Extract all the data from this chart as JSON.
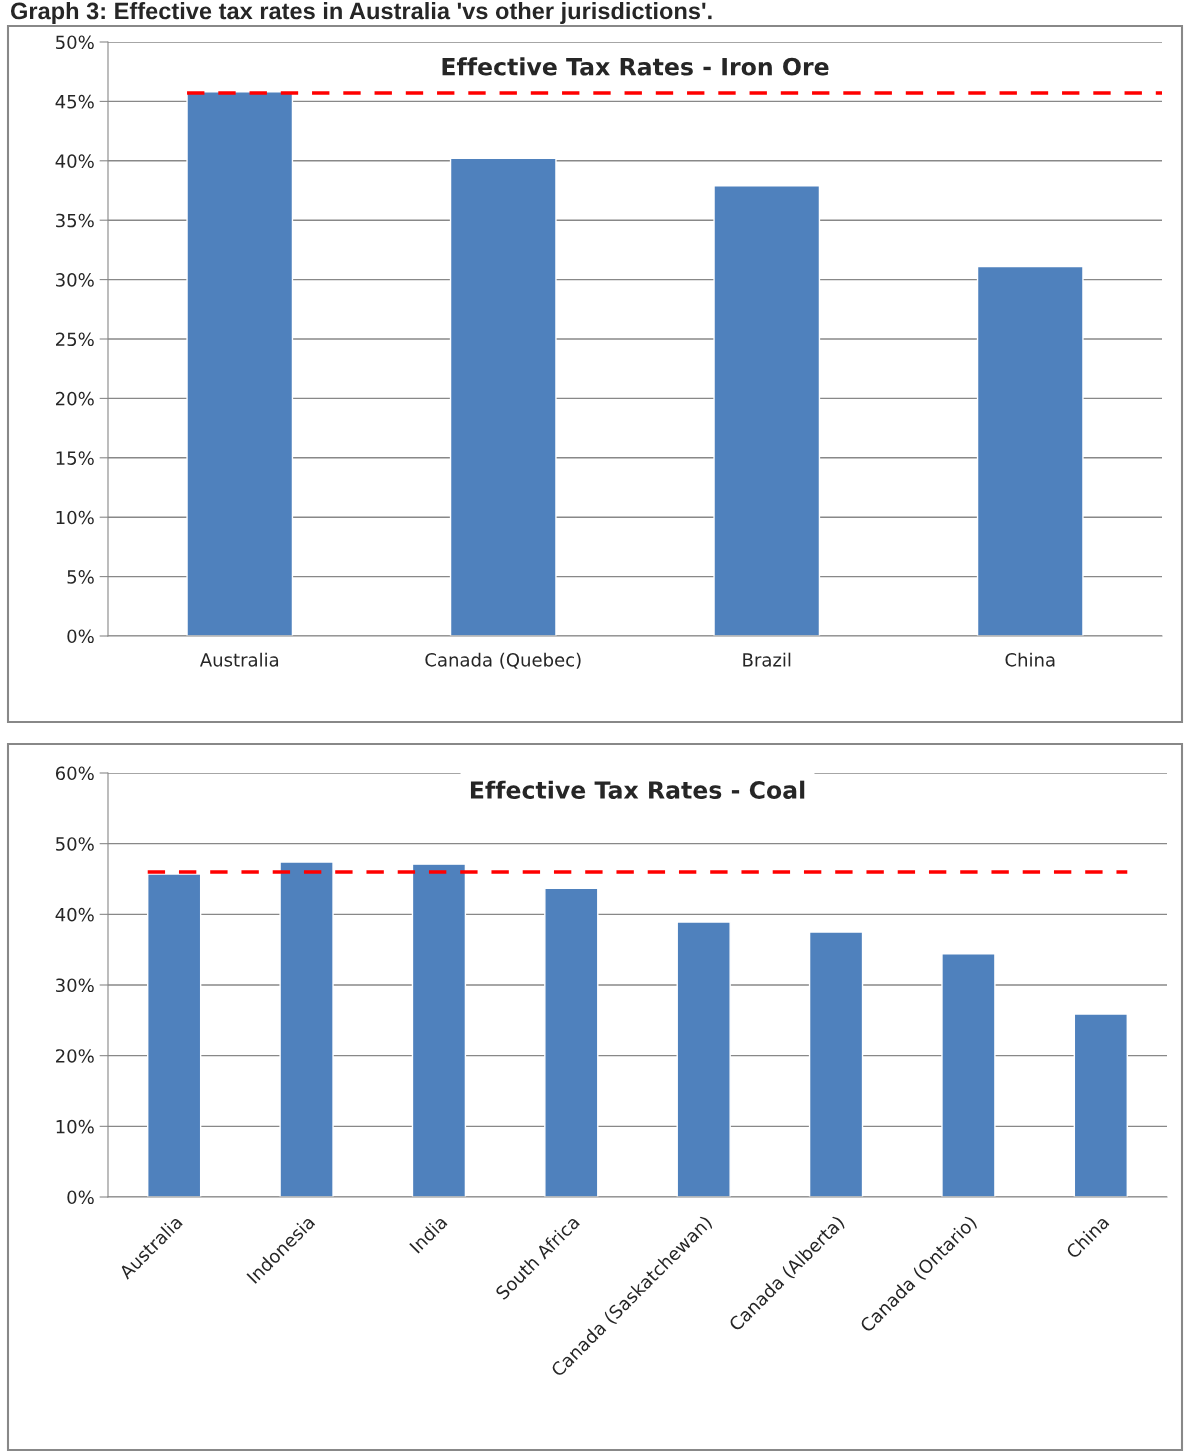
{
  "chart_data": [
    {
      "type": "bar",
      "title": "Effective Tax Rates - Iron Ore",
      "annotations": [
        "Graph 3: Effective tax rates in Australia 'vs other jurisdictions'."
      ],
      "categories": [
        "Australia",
        "Canada (Quebec)",
        "Brazil",
        "China"
      ],
      "values": [
        45.8,
        40.2,
        37.9,
        31.1
      ],
      "color": "#4f81bd",
      "ylim": [
        0,
        50
      ],
      "yticks": [
        {
          "value": 0,
          "label": "0%"
        },
        {
          "value": 5,
          "label": "5%"
        },
        {
          "value": 10,
          "label": "10%"
        },
        {
          "value": 15,
          "label": "15%"
        },
        {
          "value": 20,
          "label": "20%"
        },
        {
          "value": 25,
          "label": "25%"
        },
        {
          "value": 30,
          "label": "30%"
        },
        {
          "value": 35,
          "label": "35%"
        },
        {
          "value": 40,
          "label": "40%"
        },
        {
          "value": 45,
          "label": "45%"
        },
        {
          "value": 50,
          "label": "50%"
        }
      ],
      "ref_lines": [
        {
          "axis": "y",
          "value": 45.7,
          "color": "#ff0000",
          "line_style": "dashed"
        }
      ],
      "grid": "y",
      "legend": false
    },
    {
      "type": "bar",
      "title": "Effective Tax Rates - Coal",
      "categories": [
        "Australia",
        "Indonesia",
        "India",
        "South Africa",
        "Canada (Saskatchewan)",
        "Canada (Alberta)",
        "Canada (Ontario)",
        "China"
      ],
      "values": [
        45.7,
        47.4,
        47.1,
        43.7,
        38.9,
        37.5,
        34.4,
        25.9
      ],
      "color": "#4f81bd",
      "ylim": [
        0,
        60
      ],
      "yticks": [
        {
          "value": 0,
          "label": "0%"
        },
        {
          "value": 10,
          "label": "10%"
        },
        {
          "value": 20,
          "label": "20%"
        },
        {
          "value": 30,
          "label": "30%"
        },
        {
          "value": 40,
          "label": "40%"
        },
        {
          "value": 50,
          "label": "50%"
        },
        {
          "value": 60,
          "label": "60%"
        }
      ],
      "ref_lines": [
        {
          "axis": "y",
          "value": 46.0,
          "color": "#ff0000",
          "line_style": "dashed"
        }
      ],
      "grid": "y",
      "legend": false
    }
  ]
}
